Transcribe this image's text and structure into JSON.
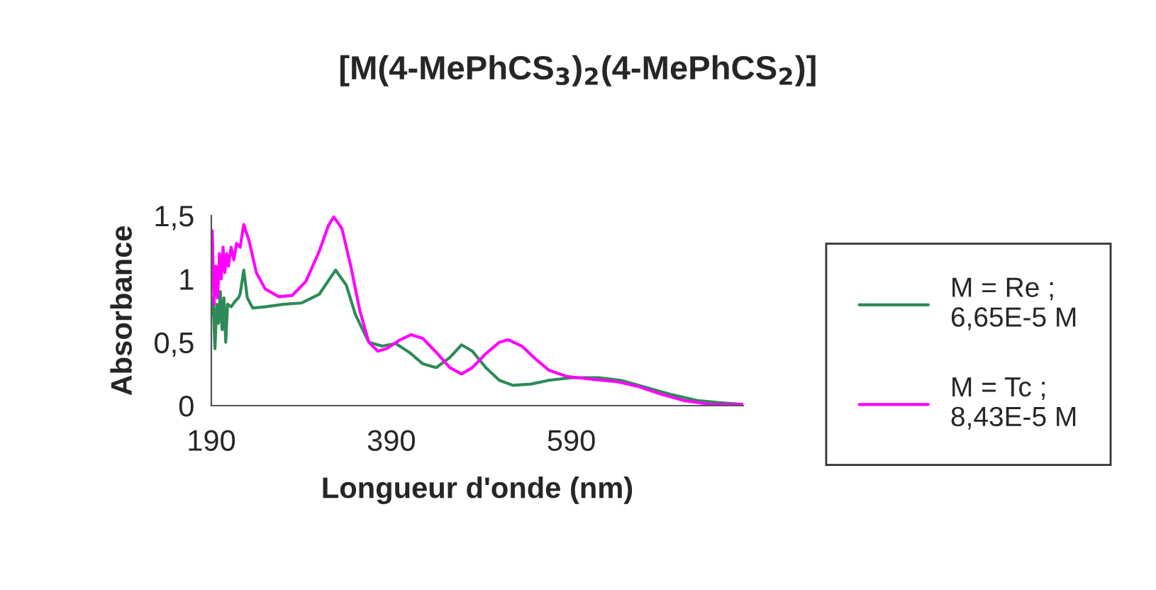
{
  "chart_data": {
    "type": "line",
    "title": "[M(4-MePhCS$_{3}$)$_{2}$(4-MePhCS$_{2}$)]",
    "xlabel": "Longueur d'onde (nm)",
    "ylabel": "Absorbance",
    "xlim": [
      190,
      781
    ],
    "xticks": [
      190,
      390,
      590
    ],
    "ylim": [
      0,
      1.5
    ],
    "yticks": [
      0,
      {
        "value": 0.5,
        "label": "0,5"
      },
      1,
      {
        "value": 1.5,
        "label": "1,5"
      }
    ],
    "grid": false,
    "legend": "right",
    "marker": "none",
    "line_style": "solid",
    "series": [
      {
        "name": "M = Re ;\n6,65E-5 M",
        "color": "#2e8b57",
        "x": [
          190,
          192,
          194,
          196,
          198,
          200,
          202,
          204,
          206,
          208,
          212,
          216,
          220,
          222,
          226,
          230,
          236,
          250,
          270,
          290,
          310,
          328,
          340,
          350,
          365,
          380,
          395,
          410,
          425,
          440,
          455,
          468,
          480,
          495,
          510,
          525,
          545,
          565,
          590,
          620,
          645,
          670,
          700,
          730,
          760,
          781
        ],
        "values": [
          0.72,
          0.85,
          0.45,
          0.8,
          0.65,
          0.9,
          0.6,
          0.85,
          0.5,
          0.8,
          0.78,
          0.82,
          0.85,
          0.88,
          1.07,
          0.85,
          0.77,
          0.78,
          0.8,
          0.81,
          0.88,
          1.07,
          0.95,
          0.72,
          0.5,
          0.47,
          0.49,
          0.42,
          0.33,
          0.3,
          0.38,
          0.48,
          0.43,
          0.3,
          0.2,
          0.16,
          0.17,
          0.2,
          0.22,
          0.22,
          0.2,
          0.15,
          0.09,
          0.04,
          0.02,
          0.01
        ]
      },
      {
        "name": "M = Tc ;\n8,43E-5 M",
        "color": "#ff00ff",
        "x": [
          190,
          191,
          193,
          195,
          197,
          199,
          201,
          203,
          205,
          207,
          209,
          212,
          215,
          218,
          222,
          226,
          232,
          240,
          250,
          265,
          280,
          295,
          310,
          320,
          326,
          335,
          345,
          355,
          365,
          375,
          385,
          400,
          412,
          425,
          440,
          455,
          468,
          480,
          495,
          510,
          520,
          535,
          550,
          565,
          585,
          610,
          640,
          665,
          690,
          715,
          745,
          781
        ],
        "values": [
          0.95,
          1.38,
          0.8,
          1.1,
          0.85,
          1.2,
          1.0,
          1.25,
          1.05,
          1.2,
          1.1,
          1.25,
          1.15,
          1.28,
          1.25,
          1.43,
          1.3,
          1.05,
          0.92,
          0.86,
          0.87,
          0.98,
          1.22,
          1.42,
          1.49,
          1.4,
          1.1,
          0.75,
          0.5,
          0.43,
          0.45,
          0.52,
          0.56,
          0.53,
          0.42,
          0.3,
          0.25,
          0.3,
          0.41,
          0.5,
          0.52,
          0.47,
          0.37,
          0.28,
          0.23,
          0.21,
          0.19,
          0.15,
          0.09,
          0.04,
          0.01,
          0.01
        ]
      }
    ]
  }
}
